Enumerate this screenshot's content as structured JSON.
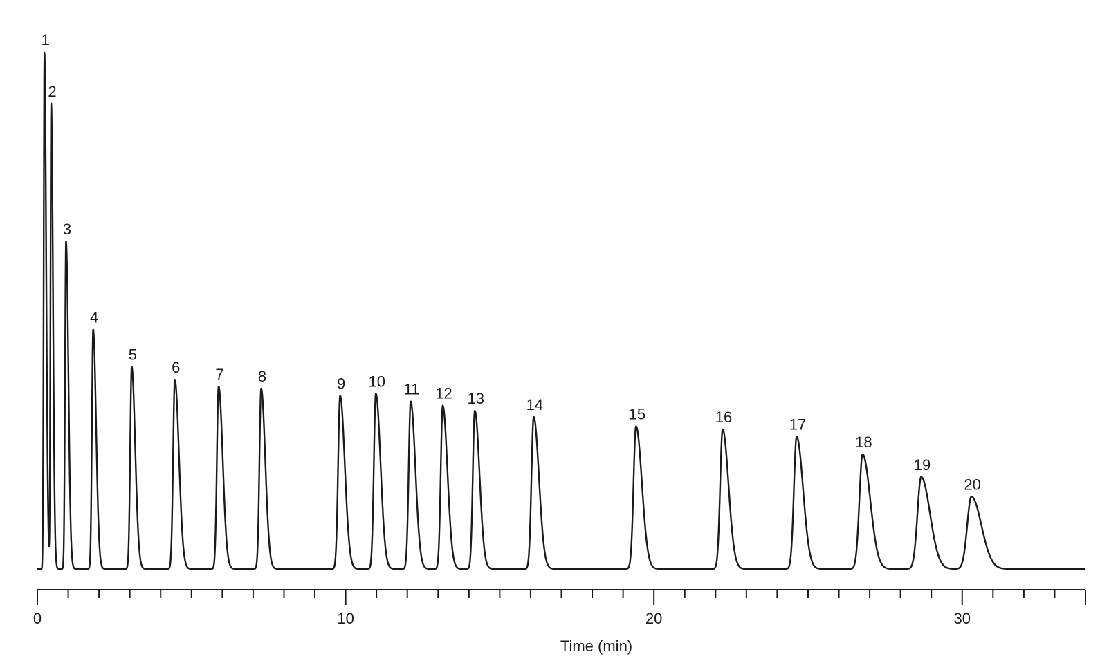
{
  "chart_data": {
    "type": "line",
    "title": "",
    "xlabel": "Time (min)",
    "ylabel": "",
    "xlim": [
      0,
      34
    ],
    "ylim": [
      0,
      100
    ],
    "x_major_ticks": [
      0,
      10,
      20,
      30
    ],
    "x_minor_tick_step": 1,
    "grid": false,
    "line_color": "#1a1a1a",
    "series": [
      {
        "peaks": [
          {
            "label": "1",
            "time": 0.23,
            "height": 100.0,
            "width": 0.03
          },
          {
            "label": "2",
            "time": 0.45,
            "height": 90.0,
            "width": 0.03
          },
          {
            "label": "3",
            "time": 0.93,
            "height": 63.4,
            "width": 0.04
          },
          {
            "label": "4",
            "time": 1.81,
            "height": 46.3,
            "width": 0.05
          },
          {
            "label": "5",
            "time": 3.06,
            "height": 39.1,
            "width": 0.06
          },
          {
            "label": "6",
            "time": 4.46,
            "height": 36.6,
            "width": 0.07
          },
          {
            "label": "7",
            "time": 5.88,
            "height": 35.3,
            "width": 0.07
          },
          {
            "label": "8",
            "time": 7.26,
            "height": 34.9,
            "width": 0.07
          },
          {
            "label": "9",
            "time": 9.82,
            "height": 33.5,
            "width": 0.08
          },
          {
            "label": "10",
            "time": 10.98,
            "height": 33.9,
            "width": 0.08
          },
          {
            "label": "11",
            "time": 12.11,
            "height": 32.4,
            "width": 0.08
          },
          {
            "label": "12",
            "time": 13.15,
            "height": 31.6,
            "width": 0.08
          },
          {
            "label": "13",
            "time": 14.19,
            "height": 30.6,
            "width": 0.08
          },
          {
            "label": "14",
            "time": 16.1,
            "height": 29.4,
            "width": 0.09
          },
          {
            "label": "15",
            "time": 19.42,
            "height": 27.6,
            "width": 0.1
          },
          {
            "label": "16",
            "time": 22.23,
            "height": 27.0,
            "width": 0.1
          },
          {
            "label": "17",
            "time": 24.63,
            "height": 25.6,
            "width": 0.11
          },
          {
            "label": "18",
            "time": 26.77,
            "height": 22.2,
            "width": 0.13
          },
          {
            "label": "19",
            "time": 28.67,
            "height": 17.8,
            "width": 0.15
          },
          {
            "label": "20",
            "time": 30.3,
            "height": 14.0,
            "width": 0.17
          }
        ]
      }
    ]
  }
}
